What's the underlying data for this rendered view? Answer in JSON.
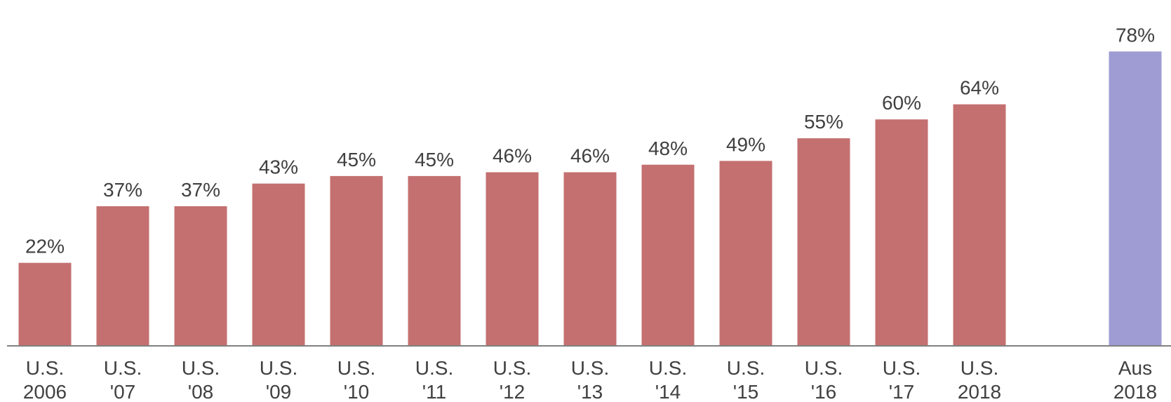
{
  "chart_data": {
    "type": "bar",
    "categories": [
      [
        "U.S.",
        "2006"
      ],
      [
        "U.S.",
        "'07"
      ],
      [
        "U.S.",
        "'08"
      ],
      [
        "U.S.",
        "'09"
      ],
      [
        "U.S.",
        "'10"
      ],
      [
        "U.S.",
        "'11"
      ],
      [
        "U.S.",
        "'12"
      ],
      [
        "U.S.",
        "'13"
      ],
      [
        "U.S.",
        "'14"
      ],
      [
        "U.S.",
        "'15"
      ],
      [
        "U.S.",
        "'16"
      ],
      [
        "U.S.",
        "'17"
      ],
      [
        "U.S.",
        "2018"
      ],
      [
        "Aus",
        "2018"
      ]
    ],
    "values": [
      22,
      37,
      37,
      43,
      45,
      45,
      46,
      46,
      48,
      49,
      55,
      60,
      64,
      78
    ],
    "value_labels": [
      "22%",
      "37%",
      "37%",
      "43%",
      "45%",
      "45%",
      "46%",
      "46%",
      "48%",
      "49%",
      "55%",
      "60%",
      "64%",
      "78%"
    ],
    "bar_colors": [
      "#c47070",
      "#c47070",
      "#c47070",
      "#c47070",
      "#c47070",
      "#c47070",
      "#c47070",
      "#c47070",
      "#c47070",
      "#c47070",
      "#c47070",
      "#c47070",
      "#c47070",
      "#9e9cd2"
    ],
    "title": "",
    "xlabel": "",
    "ylabel": "",
    "ylim": [
      0,
      80
    ],
    "grid": false,
    "legend": "none",
    "colors": {
      "us": "#c47070",
      "aus": "#9e9cd2",
      "axis": "#808080",
      "text": "#404040"
    }
  }
}
